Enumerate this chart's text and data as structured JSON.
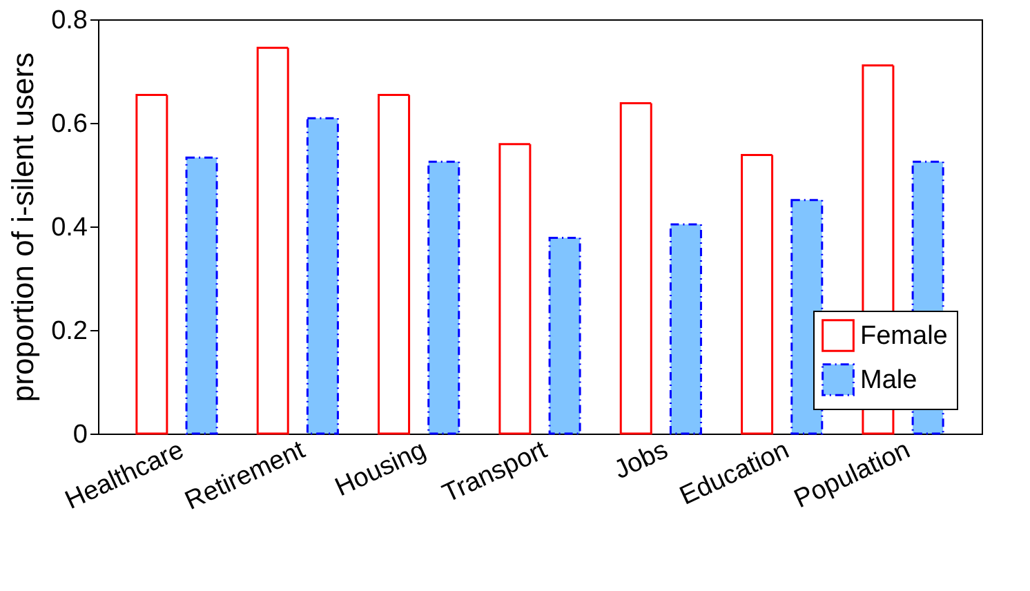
{
  "chart_data": {
    "type": "bar",
    "ylabel": "proportion of i-silent users",
    "categories": [
      "Healthcare",
      "Retirement",
      "Housing",
      "Transport",
      "Jobs",
      "Education",
      "Population"
    ],
    "series": [
      {
        "name": "Female",
        "color": "#ff0000",
        "values": [
          0.654,
          0.745,
          0.654,
          0.559,
          0.638,
          0.538,
          0.711
        ]
      },
      {
        "name": "Male",
        "color": "#80c4ff",
        "values": [
          0.533,
          0.609,
          0.525,
          0.378,
          0.404,
          0.451,
          0.525
        ]
      }
    ],
    "ylim": [
      0,
      0.8
    ],
    "yticks": [
      0,
      0.2,
      0.4,
      0.6,
      0.8
    ],
    "grid": false,
    "legend": "bottom right"
  }
}
